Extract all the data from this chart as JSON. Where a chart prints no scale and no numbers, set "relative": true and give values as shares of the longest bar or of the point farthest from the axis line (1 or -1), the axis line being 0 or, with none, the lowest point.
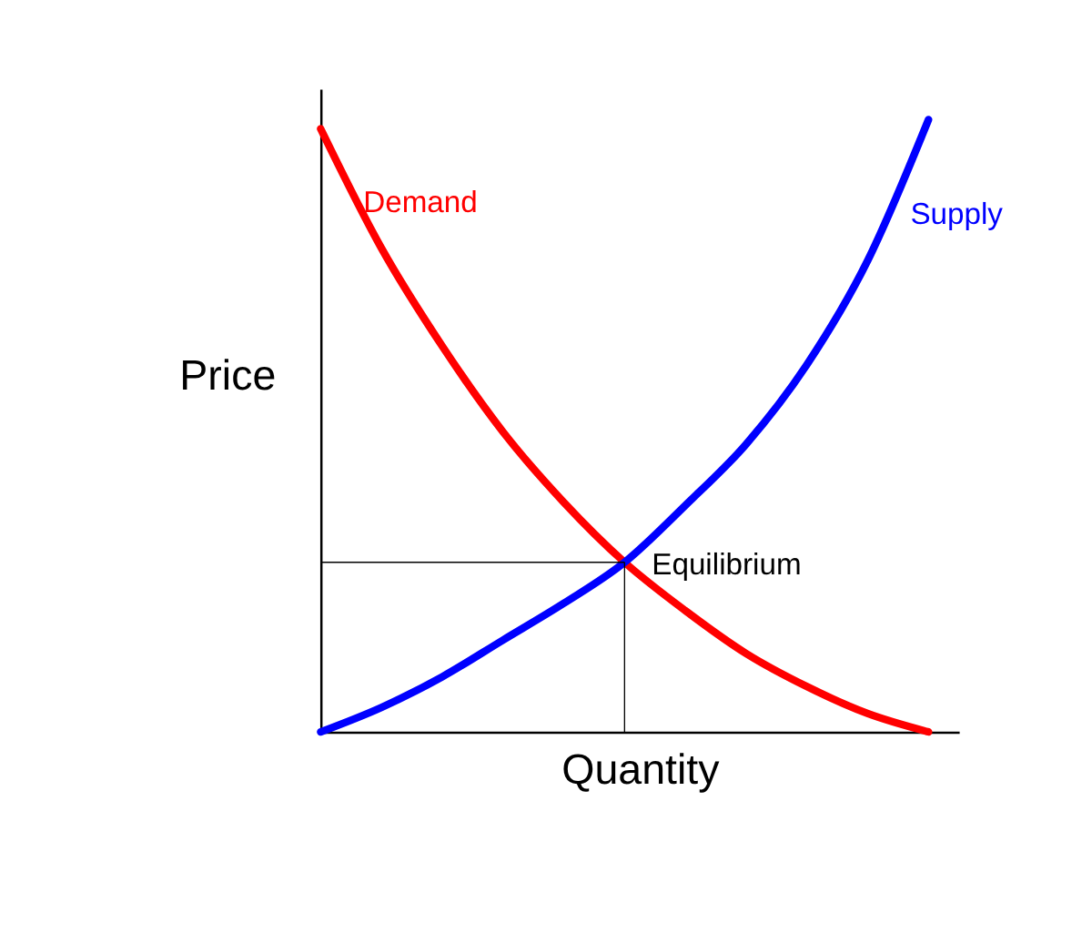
{
  "chart_data": {
    "type": "line",
    "relative": true,
    "xlabel": "Quantity",
    "ylabel": "Price",
    "categories": [
      null,
      null,
      null,
      null,
      null,
      null,
      null,
      null,
      null,
      null,
      null
    ],
    "series": [
      {
        "name": "Demand",
        "color": "#ff0000",
        "values": [
          0.985,
          0.79,
          0.63,
          0.49,
          0.375,
          0.277,
          0.198,
          0.128,
          0.074,
          0.03,
          0
        ]
      },
      {
        "name": "Supply",
        "color": "#0000ff",
        "values": [
          0,
          0.04,
          0.09,
          0.15,
          0.21,
          0.277,
          0.37,
          0.47,
          0.6,
          0.77,
          1.0
        ]
      }
    ],
    "annotations": [
      "Equilibrium"
    ],
    "tick_labels": false,
    "grid": false,
    "marker": "none",
    "line_style": "solid"
  }
}
